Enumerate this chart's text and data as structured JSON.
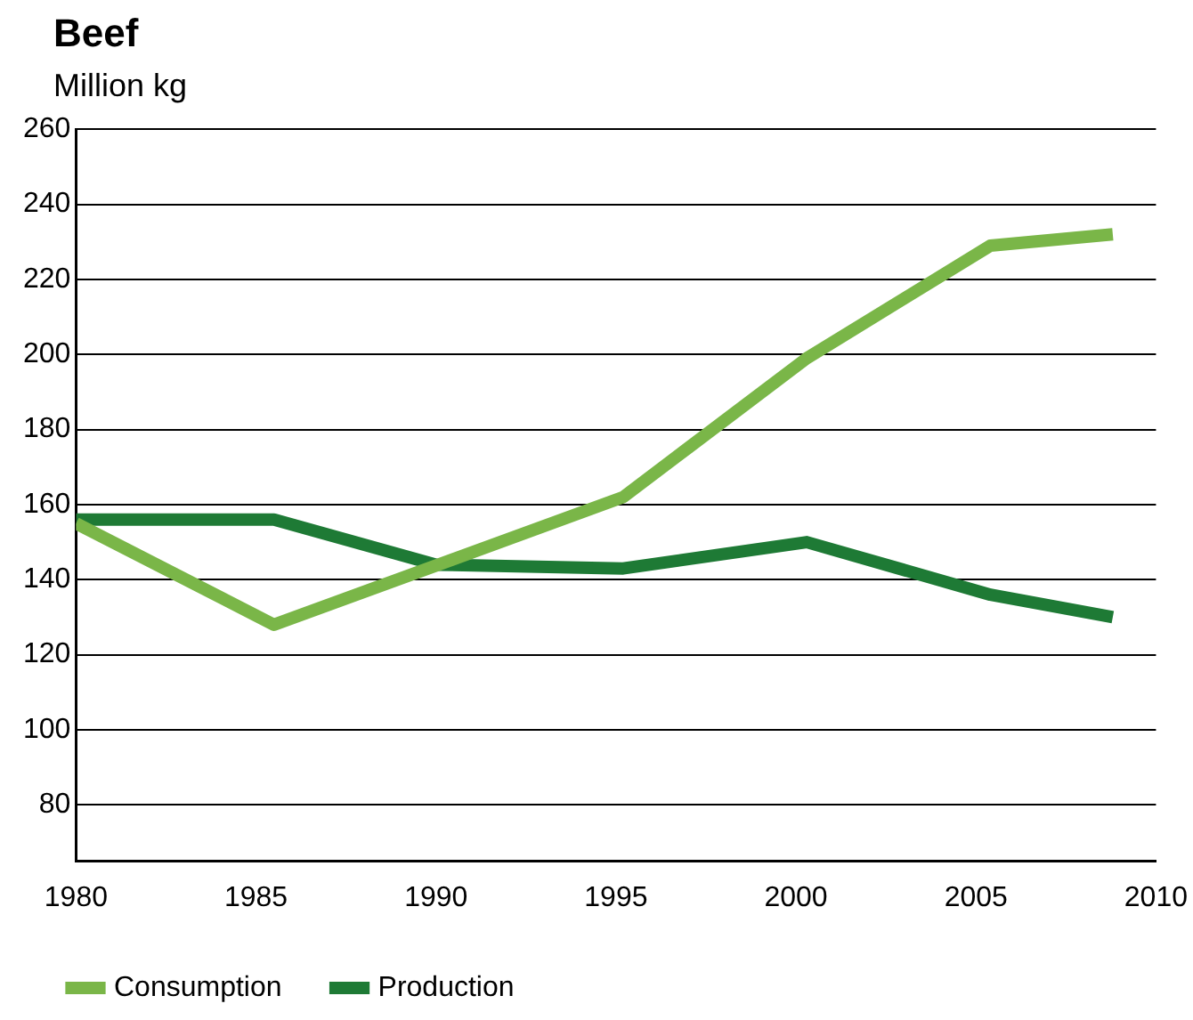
{
  "chart_data": {
    "type": "line",
    "title": "Beef",
    "subtitle": "Million kg",
    "series": [
      {
        "name": "Consumption",
        "color": "#7ab648",
        "x": [
          1980,
          1985.5,
          1995.2,
          2000.3,
          2005.4,
          2008.8
        ],
        "values": [
          155,
          128,
          162,
          199,
          229,
          232
        ]
      },
      {
        "name": "Production",
        "color": "#1e7a35",
        "x": [
          1980,
          1985.5,
          1990,
          1995.2,
          2000.3,
          2005.4,
          2008.8
        ],
        "values": [
          156,
          156,
          144,
          143,
          150,
          136,
          130
        ]
      }
    ],
    "xlim": [
      1980,
      2010
    ],
    "xticks": [
      1980,
      1985,
      1990,
      1995,
      2000,
      2005,
      2010
    ],
    "ylim": [
      65,
      260
    ],
    "yticks": [
      80,
      100,
      120,
      140,
      160,
      180,
      200,
      220,
      240,
      260
    ],
    "grid": "y",
    "legend": "bottom",
    "marker": "none",
    "line_style": "solid"
  }
}
